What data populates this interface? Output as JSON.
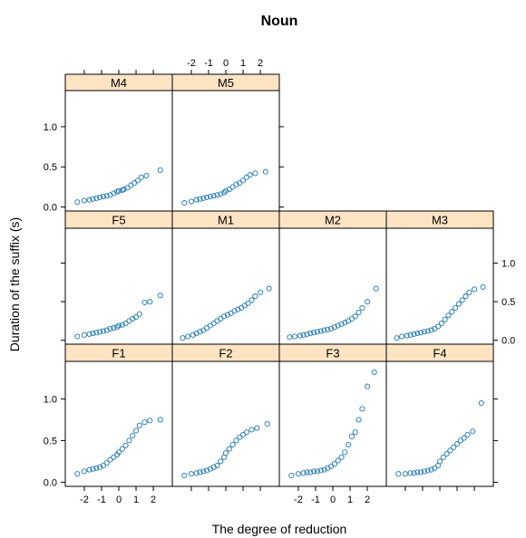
{
  "chart_data": {
    "type": "scatter",
    "title": "Noun",
    "xlabel": "The degree of reduction",
    "ylabel": "Duration of the suffix (s)",
    "xlim": [
      -3.1,
      3.1
    ],
    "ylim": [
      -0.05,
      1.45
    ],
    "x_ticks": [
      -2,
      -1,
      0,
      1,
      2
    ],
    "x_tick_labels": [
      "-2",
      "-1",
      "0",
      "1",
      "2"
    ],
    "y_ticks": [
      0.0,
      0.5,
      1.0
    ],
    "y_tick_labels": [
      "0.0",
      "0.5",
      "1.0"
    ],
    "grid": false,
    "legend": "none",
    "colors": {
      "point": "#1f77b4",
      "strip_bg": "#ffe4c4",
      "panel_border": "#000000"
    },
    "panels": [
      {
        "name": "M4",
        "x": [
          -2.4,
          -2.0,
          -1.7,
          -1.5,
          -1.3,
          -1.1,
          -0.9,
          -0.7,
          -0.5,
          -0.3,
          -0.1,
          0.0,
          0.2,
          0.3,
          0.5,
          0.7,
          0.9,
          1.1,
          1.3,
          1.6,
          2.4
        ],
        "y": [
          0.06,
          0.08,
          0.09,
          0.1,
          0.11,
          0.12,
          0.13,
          0.14,
          0.15,
          0.17,
          0.19,
          0.2,
          0.21,
          0.22,
          0.24,
          0.27,
          0.3,
          0.33,
          0.37,
          0.39,
          0.46
        ]
      },
      {
        "name": "M5",
        "x": [
          -2.4,
          -2.0,
          -1.7,
          -1.5,
          -1.3,
          -1.1,
          -0.9,
          -0.7,
          -0.5,
          -0.3,
          -0.1,
          0.0,
          0.2,
          0.4,
          0.6,
          0.8,
          1.0,
          1.2,
          1.4,
          1.7,
          2.3
        ],
        "y": [
          0.05,
          0.07,
          0.09,
          0.1,
          0.11,
          0.12,
          0.13,
          0.14,
          0.15,
          0.16,
          0.18,
          0.2,
          0.22,
          0.25,
          0.28,
          0.3,
          0.33,
          0.37,
          0.4,
          0.42,
          0.44
        ]
      },
      {
        "name": "F5",
        "x": [
          -2.4,
          -2.0,
          -1.7,
          -1.5,
          -1.3,
          -1.1,
          -0.9,
          -0.7,
          -0.5,
          -0.3,
          -0.1,
          0.0,
          0.2,
          0.4,
          0.6,
          0.8,
          1.0,
          1.2,
          1.5,
          1.8,
          2.4
        ],
        "y": [
          0.05,
          0.07,
          0.08,
          0.09,
          0.1,
          0.11,
          0.12,
          0.13,
          0.15,
          0.16,
          0.17,
          0.19,
          0.2,
          0.22,
          0.25,
          0.28,
          0.3,
          0.34,
          0.49,
          0.5,
          0.58
        ]
      },
      {
        "name": "M1",
        "x": [
          -2.5,
          -2.2,
          -1.9,
          -1.7,
          -1.5,
          -1.3,
          -1.1,
          -0.9,
          -0.7,
          -0.5,
          -0.3,
          -0.1,
          0.1,
          0.3,
          0.5,
          0.7,
          0.9,
          1.1,
          1.3,
          1.5,
          1.7,
          2.0,
          2.5
        ],
        "y": [
          0.03,
          0.05,
          0.07,
          0.09,
          0.11,
          0.13,
          0.16,
          0.19,
          0.22,
          0.25,
          0.28,
          0.31,
          0.33,
          0.35,
          0.38,
          0.4,
          0.42,
          0.45,
          0.48,
          0.52,
          0.57,
          0.62,
          0.67
        ]
      },
      {
        "name": "M2",
        "x": [
          -2.5,
          -2.2,
          -1.9,
          -1.7,
          -1.5,
          -1.3,
          -1.1,
          -0.9,
          -0.7,
          -0.5,
          -0.3,
          -0.1,
          0.1,
          0.3,
          0.5,
          0.7,
          0.9,
          1.1,
          1.3,
          1.5,
          1.7,
          2.0,
          2.5
        ],
        "y": [
          0.04,
          0.05,
          0.06,
          0.07,
          0.08,
          0.09,
          0.1,
          0.11,
          0.12,
          0.13,
          0.14,
          0.15,
          0.17,
          0.19,
          0.21,
          0.23,
          0.25,
          0.28,
          0.31,
          0.36,
          0.42,
          0.5,
          0.67
        ]
      },
      {
        "name": "M3",
        "x": [
          -2.5,
          -2.2,
          -1.9,
          -1.7,
          -1.5,
          -1.3,
          -1.1,
          -0.9,
          -0.7,
          -0.5,
          -0.3,
          -0.1,
          0.1,
          0.3,
          0.5,
          0.7,
          0.9,
          1.1,
          1.3,
          1.5,
          1.7,
          2.0,
          2.5
        ],
        "y": [
          0.03,
          0.05,
          0.06,
          0.07,
          0.08,
          0.09,
          0.1,
          0.11,
          0.12,
          0.13,
          0.15,
          0.18,
          0.22,
          0.27,
          0.32,
          0.37,
          0.42,
          0.47,
          0.52,
          0.57,
          0.62,
          0.66,
          0.69
        ]
      },
      {
        "name": "F1",
        "x": [
          -2.4,
          -2.0,
          -1.7,
          -1.5,
          -1.3,
          -1.1,
          -0.9,
          -0.7,
          -0.5,
          -0.3,
          -0.1,
          0.0,
          0.2,
          0.4,
          0.6,
          0.8,
          1.0,
          1.2,
          1.5,
          1.8,
          2.4
        ],
        "y": [
          0.1,
          0.13,
          0.15,
          0.16,
          0.17,
          0.18,
          0.2,
          0.23,
          0.27,
          0.3,
          0.33,
          0.36,
          0.4,
          0.44,
          0.5,
          0.56,
          0.62,
          0.68,
          0.72,
          0.74,
          0.75
        ]
      },
      {
        "name": "F2",
        "x": [
          -2.4,
          -2.0,
          -1.7,
          -1.5,
          -1.3,
          -1.1,
          -0.9,
          -0.7,
          -0.5,
          -0.3,
          -0.1,
          0.0,
          0.2,
          0.4,
          0.6,
          0.8,
          1.0,
          1.2,
          1.5,
          1.8,
          2.4
        ],
        "y": [
          0.08,
          0.1,
          0.11,
          0.12,
          0.13,
          0.14,
          0.16,
          0.18,
          0.2,
          0.25,
          0.3,
          0.35,
          0.4,
          0.45,
          0.5,
          0.54,
          0.57,
          0.6,
          0.63,
          0.65,
          0.7
        ]
      },
      {
        "name": "F3",
        "x": [
          -2.4,
          -2.0,
          -1.7,
          -1.5,
          -1.3,
          -1.1,
          -0.9,
          -0.7,
          -0.5,
          -0.3,
          -0.1,
          0.1,
          0.3,
          0.5,
          0.7,
          0.9,
          1.1,
          1.3,
          1.5,
          1.7,
          2.0,
          2.4
        ],
        "y": [
          0.08,
          0.1,
          0.11,
          0.12,
          0.12,
          0.13,
          0.13,
          0.14,
          0.15,
          0.17,
          0.19,
          0.22,
          0.26,
          0.3,
          0.36,
          0.45,
          0.55,
          0.6,
          0.75,
          0.88,
          1.15,
          1.32
        ]
      },
      {
        "name": "F4",
        "x": [
          -2.4,
          -2.0,
          -1.7,
          -1.5,
          -1.3,
          -1.1,
          -0.9,
          -0.7,
          -0.5,
          -0.3,
          -0.1,
          0.0,
          0.2,
          0.4,
          0.6,
          0.8,
          1.0,
          1.2,
          1.4,
          1.6,
          1.9,
          2.4
        ],
        "y": [
          0.1,
          0.1,
          0.11,
          0.11,
          0.12,
          0.12,
          0.13,
          0.14,
          0.15,
          0.17,
          0.2,
          0.25,
          0.3,
          0.34,
          0.38,
          0.42,
          0.46,
          0.5,
          0.53,
          0.57,
          0.61,
          0.95
        ]
      }
    ]
  }
}
